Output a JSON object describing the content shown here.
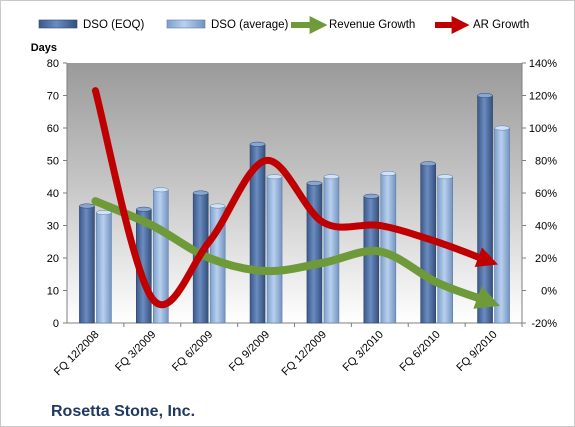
{
  "company_name": "Rosetta Stone, Inc.",
  "colors": {
    "dso_eoq": "#4f6fa0",
    "dso_average": "#93b3db",
    "revenue_growth": "#6f9a3a",
    "ar_growth": "#c00000",
    "plot_bg_top": "#9a9a9a",
    "plot_bg_bottom": "#ffffff",
    "company_text": "#1f3864"
  },
  "chart_data": {
    "type": "bar",
    "title": "",
    "categories": [
      "FQ 12/2008",
      "FQ 3/2009",
      "FQ 6/2009",
      "FQ 9/2009",
      "FQ 12/2009",
      "FQ 3/2010",
      "FQ 6/2010",
      "FQ 9/2010"
    ],
    "y_left": {
      "label": "Days",
      "lim": [
        0,
        80
      ],
      "ticks": [
        "0",
        "10",
        "20",
        "30",
        "40",
        "50",
        "60",
        "70",
        "80"
      ]
    },
    "y_right": {
      "label": "",
      "lim": [
        -20,
        140
      ],
      "ticks": [
        "-20%",
        "0%",
        "20%",
        "40%",
        "60%",
        "80%",
        "100%",
        "120%",
        "140%"
      ]
    },
    "series": [
      {
        "name": "DSO (EOQ)",
        "kind": "bar",
        "axis": "left",
        "values": [
          36,
          35,
          40,
          55,
          43,
          39,
          49,
          70
        ]
      },
      {
        "name": "DSO (average)",
        "kind": "bar",
        "axis": "left",
        "values": [
          34,
          41,
          36,
          45,
          45,
          46,
          45,
          60
        ]
      },
      {
        "name": "Revenue Growth",
        "kind": "line-arrow",
        "axis": "right",
        "values": [
          55,
          40,
          20,
          12,
          17,
          24,
          5,
          -8
        ]
      },
      {
        "name": "AR Growth",
        "kind": "line-arrow",
        "axis": "right",
        "values": [
          123,
          -5,
          30,
          80,
          42,
          40,
          30,
          17
        ]
      }
    ],
    "grid": false,
    "legend": "top"
  }
}
